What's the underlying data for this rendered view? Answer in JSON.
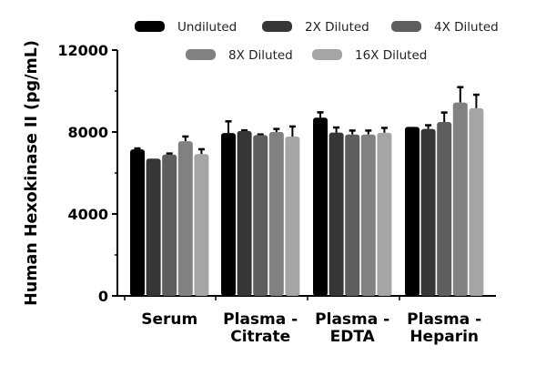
{
  "chart_data": {
    "type": "bar",
    "title": "",
    "xlabel": "",
    "ylabel": "Human Hexokinase II (pg/mL)",
    "ylim": [
      0,
      12000
    ],
    "yticks": [
      "0",
      "4000",
      "8000",
      "12000"
    ],
    "grid": false,
    "legend_placement": "top",
    "categories": [
      [
        "Serum"
      ],
      [
        "Plasma -",
        "Citrate"
      ],
      [
        "Plasma -",
        "EDTA"
      ],
      [
        "Plasma -",
        "Heparin"
      ]
    ],
    "series": [
      {
        "name": "Undiluted",
        "color": "#000000",
        "values": [
          7150,
          7950,
          8700,
          8250
        ],
        "error": [
          7200,
          8520,
          8960,
          8270
        ]
      },
      {
        "name": "2X Diluted",
        "color": "#363636",
        "values": [
          6700,
          8050,
          7970,
          8150
        ],
        "error": [
          6720,
          8080,
          8220,
          8330
        ]
      },
      {
        "name": "4X Diluted",
        "color": "#5e5e5e",
        "values": [
          6900,
          7850,
          7880,
          8490
        ],
        "error": [
          6950,
          7880,
          8070,
          8950
        ]
      },
      {
        "name": "8X Diluted",
        "color": "#818181",
        "values": [
          7550,
          8000,
          7880,
          9440
        ],
        "error": [
          7780,
          8150,
          8070,
          10190
        ]
      },
      {
        "name": "16X Diluted",
        "color": "#a5a5a5",
        "values": [
          6920,
          7780,
          7960,
          9160
        ],
        "error": [
          7160,
          8270,
          8200,
          9820
        ]
      }
    ]
  }
}
